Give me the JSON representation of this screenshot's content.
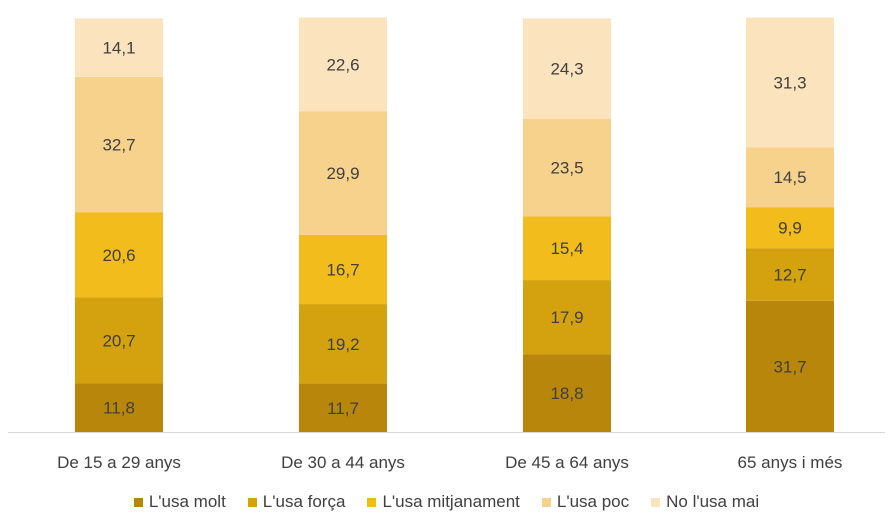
{
  "chart_data": {
    "type": "bar",
    "stacked": true,
    "categories": [
      "De 15 a 29 anys",
      "De 30 a 44 anys",
      "De 45 a 64 anys",
      "65 anys i més"
    ],
    "series": [
      {
        "name": "L'usa molt",
        "color": "#b8860b",
        "values": [
          11.8,
          11.7,
          18.8,
          31.7
        ]
      },
      {
        "name": "L'usa força",
        "color": "#d4a20f",
        "values": [
          20.7,
          19.2,
          17.9,
          12.7
        ]
      },
      {
        "name": "L'usa mitjanament",
        "color": "#f2bc1c",
        "values": [
          20.6,
          16.7,
          15.4,
          9.9
        ]
      },
      {
        "name": "L'usa poc",
        "color": "#f7d28d",
        "values": [
          32.7,
          29.9,
          23.5,
          14.5
        ]
      },
      {
        "name": "No l'usa mai",
        "color": "#fbe3be",
        "values": [
          14.1,
          22.6,
          24.3,
          31.3
        ]
      }
    ],
    "value_labels": [
      [
        "11,8",
        "11,7",
        "18,8",
        "31,7"
      ],
      [
        "20,7",
        "19,2",
        "17,9",
        "12,7"
      ],
      [
        "20,6",
        "16,7",
        "15,4",
        "9,9"
      ],
      [
        "32,7",
        "29,9",
        "23,5",
        "14,5"
      ],
      [
        "14,1",
        "22,6",
        "24,3",
        "31,3"
      ]
    ],
    "ylim": [
      0,
      100
    ],
    "legend_position": "bottom",
    "axis_color": "#d9d9d9",
    "grid": false
  }
}
